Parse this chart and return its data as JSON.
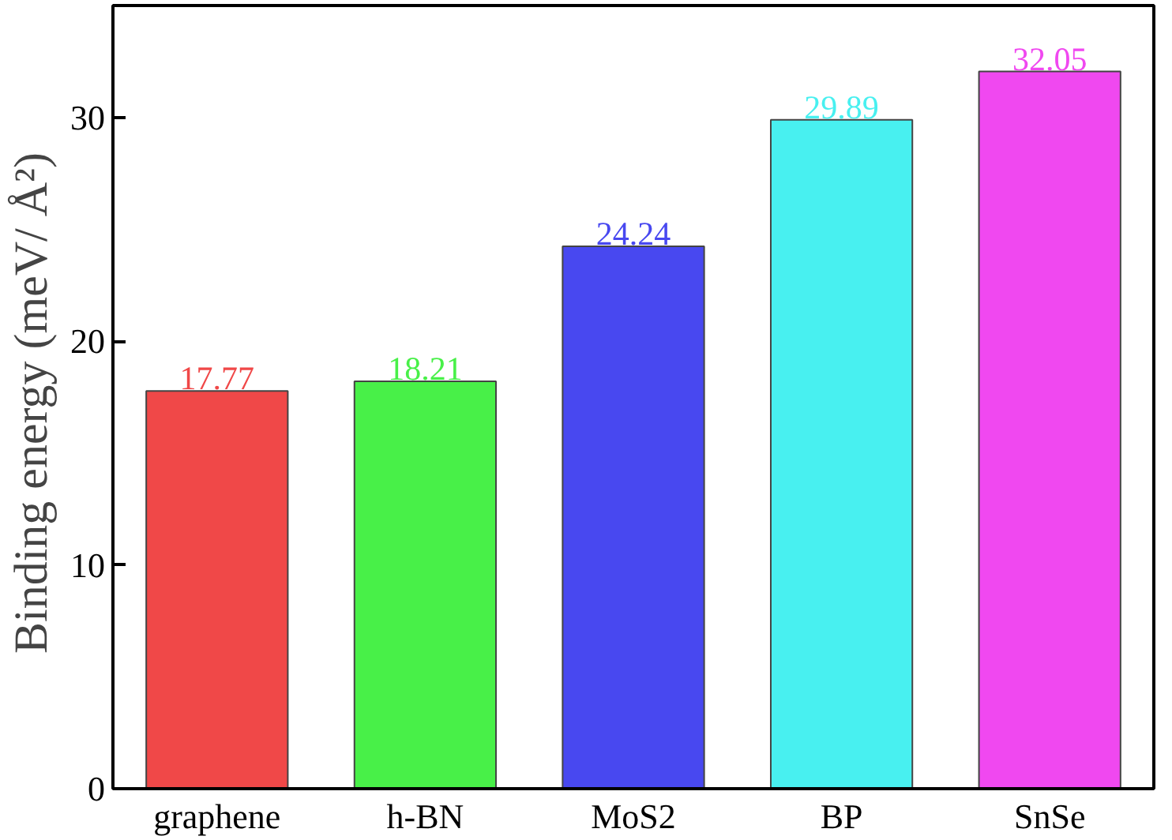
{
  "chart_data": {
    "type": "bar",
    "ylabel": "Binding energy  (meV/ Å²)",
    "categories": [
      "graphene",
      "h-BN",
      "MoS2",
      "BP",
      "SnSe"
    ],
    "values": [
      17.77,
      18.21,
      24.24,
      29.89,
      32.05
    ],
    "colors": [
      "#f04848",
      "#48f048",
      "#4848f0",
      "#48f0f0",
      "#f048f0"
    ],
    "ylim": [
      0,
      35
    ],
    "yticks": [
      0,
      10,
      20,
      30
    ],
    "data_labels": true
  }
}
